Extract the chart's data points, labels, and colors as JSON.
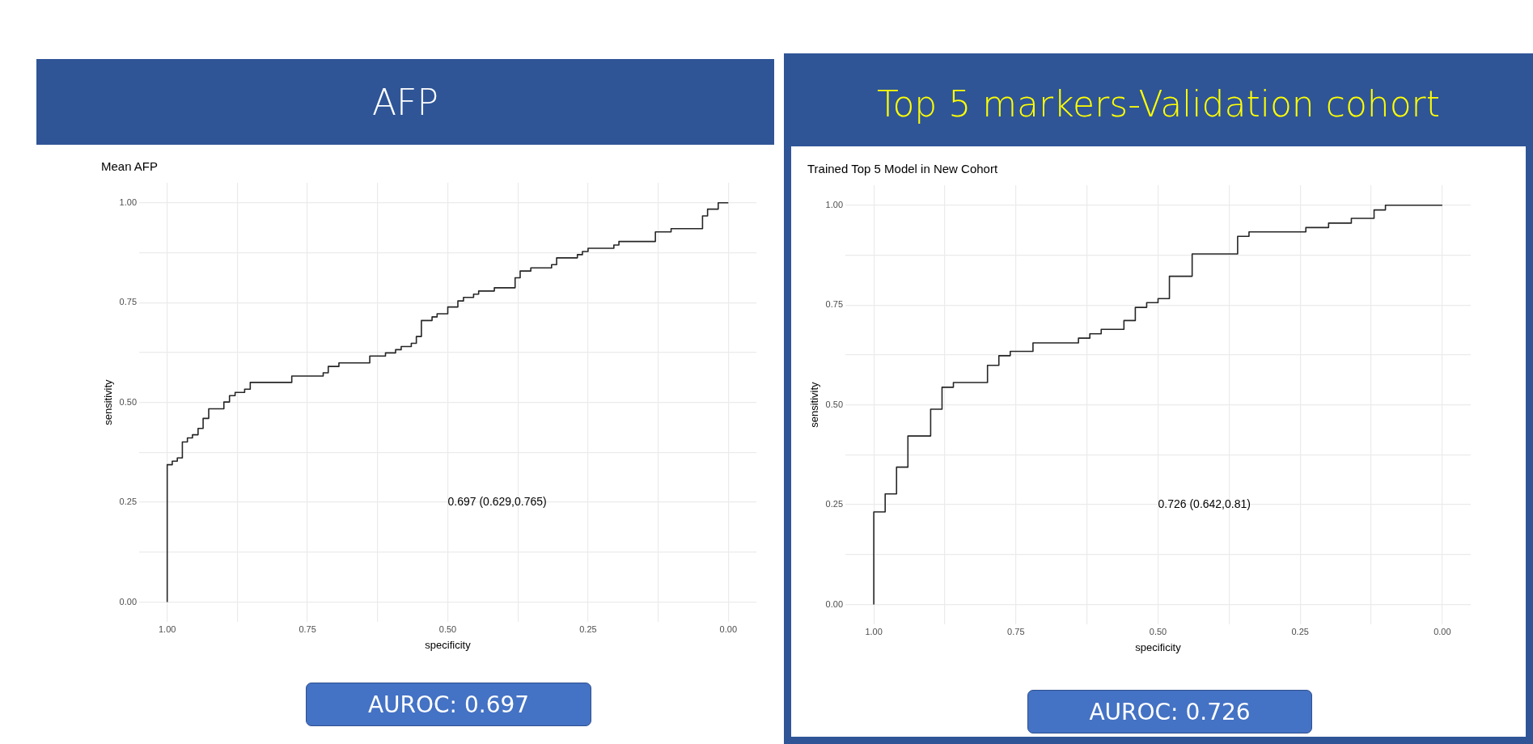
{
  "chart_data": [
    {
      "type": "step",
      "title": "AFP",
      "subtitle": "Mean AFP",
      "xlabel": "specificity",
      "ylabel": "sensitivity",
      "x": [
        1,
        0.991,
        0.982,
        0.973,
        0.964,
        0.955,
        0.945,
        0.936,
        0.926,
        0.899,
        0.889,
        0.879,
        0.862,
        0.852,
        0.778,
        0.722,
        0.713,
        0.694,
        0.639,
        0.611,
        0.593,
        0.583,
        0.565,
        0.556,
        0.547,
        0.528,
        0.519,
        0.5,
        0.482,
        0.472,
        0.454,
        0.445,
        0.417,
        0.38,
        0.371,
        0.352,
        0.315,
        0.306,
        0.269,
        0.26,
        0.25,
        0.204,
        0.195,
        0.13,
        0.102,
        0.046,
        0.037,
        0.018,
        0
      ],
      "series": [
        {
          "color": "#262626",
          "values": [
            0,
            0.344,
            0.353,
            0.361,
            0.401,
            0.411,
            0.419,
            0.435,
            0.46,
            0.484,
            0.501,
            0.517,
            0.525,
            0.533,
            0.55,
            0.566,
            0.574,
            0.59,
            0.599,
            0.616,
            0.624,
            0.632,
            0.64,
            0.648,
            0.665,
            0.705,
            0.714,
            0.722,
            0.739,
            0.754,
            0.763,
            0.771,
            0.779,
            0.787,
            0.812,
            0.829,
            0.837,
            0.845,
            0.862,
            0.87,
            0.878,
            0.886,
            0.894,
            0.903,
            0.927,
            0.935,
            0.967,
            0.984,
            1
          ]
        }
      ],
      "xlim": [
        1.05,
        -0.05
      ],
      "ylim": [
        -0.05,
        1.05
      ],
      "xticks": [
        {
          "value": 1,
          "label": "1.00"
        },
        {
          "value": 0.875,
          "label": null
        },
        {
          "value": 0.75,
          "label": "0.75"
        },
        {
          "value": 0.625,
          "label": null
        },
        {
          "value": 0.5,
          "label": "0.50"
        },
        {
          "value": 0.375,
          "label": null
        },
        {
          "value": 0.25,
          "label": "0.25"
        },
        {
          "value": 0.125,
          "label": null
        },
        {
          "value": 0,
          "label": "0.00"
        }
      ],
      "yticks": [
        {
          "value": 0,
          "label": "0.00"
        },
        {
          "value": 0.125,
          "label": null
        },
        {
          "value": 0.25,
          "label": "0.25"
        },
        {
          "value": 0.375,
          "label": null
        },
        {
          "value": 0.5,
          "label": "0.50"
        },
        {
          "value": 0.625,
          "label": null
        },
        {
          "value": 0.75,
          "label": "0.75"
        },
        {
          "value": 0.875,
          "label": null
        },
        {
          "value": 1,
          "label": "1.00"
        }
      ],
      "grid": true,
      "annotations": [
        "0.697 (0.629,0.765)",
        "AUROC: 0.697"
      ]
    },
    {
      "type": "step",
      "title": "Top 5 markers-Validation cohort",
      "subtitle": "Trained Top 5 Model in New Cohort",
      "xlabel": "specificity",
      "ylabel": "sensitivity",
      "x": [
        1,
        1,
        0.98,
        0.96,
        0.94,
        0.9,
        0.88,
        0.86,
        0.8,
        0.78,
        0.76,
        0.72,
        0.64,
        0.62,
        0.6,
        0.56,
        0.54,
        0.52,
        0.5,
        0.48,
        0.44,
        0.36,
        0.34,
        0.24,
        0.2,
        0.16,
        0.12,
        0.1,
        0.06,
        0
      ],
      "series": [
        {
          "color": "#262626",
          "values": [
            0,
            0.121,
            0.232,
            0.277,
            0.344,
            0.422,
            0.489,
            0.544,
            0.556,
            0.599,
            0.623,
            0.634,
            0.655,
            0.667,
            0.678,
            0.689,
            0.711,
            0.744,
            0.756,
            0.766,
            0.822,
            0.878,
            0.922,
            0.933,
            0.944,
            0.955,
            0.967,
            0.988,
            1,
            1
          ]
        }
      ],
      "xlim": [
        1.05,
        -0.05
      ],
      "ylim": [
        -0.05,
        1.05
      ],
      "xticks": [
        {
          "value": 1,
          "label": "1.00"
        },
        {
          "value": 0.875,
          "label": null
        },
        {
          "value": 0.75,
          "label": "0.75"
        },
        {
          "value": 0.625,
          "label": null
        },
        {
          "value": 0.5,
          "label": "0.50"
        },
        {
          "value": 0.375,
          "label": null
        },
        {
          "value": 0.25,
          "label": "0.25"
        },
        {
          "value": 0.125,
          "label": null
        },
        {
          "value": 0,
          "label": "0.00"
        }
      ],
      "yticks": [
        {
          "value": 0,
          "label": "0.00"
        },
        {
          "value": 0.125,
          "label": null
        },
        {
          "value": 0.25,
          "label": "0.25"
        },
        {
          "value": 0.375,
          "label": null
        },
        {
          "value": 0.5,
          "label": "0.50"
        },
        {
          "value": 0.625,
          "label": null
        },
        {
          "value": 0.75,
          "label": "0.75"
        },
        {
          "value": 0.875,
          "label": null
        },
        {
          "value": 1,
          "label": "1.00"
        }
      ],
      "grid": true,
      "annotations": [
        "0.726 (0.642,0.81)",
        "AUROC: 0.726"
      ]
    }
  ]
}
